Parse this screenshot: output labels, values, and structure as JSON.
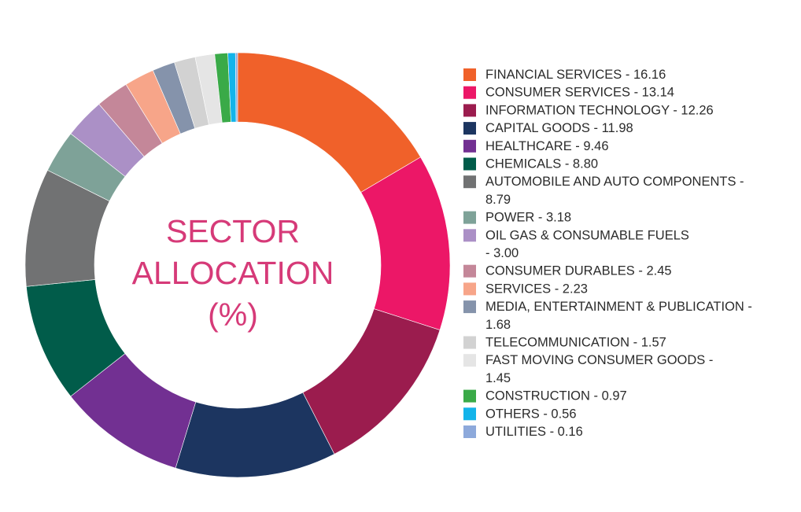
{
  "chart_data": {
    "type": "pie",
    "variant": "donut",
    "title_lines": [
      "SECTOR",
      "ALLOCATION",
      "(%)"
    ],
    "legend_position": "right",
    "slices": [
      {
        "label_lines": [
          "FINANCIAL SERVICES - 16.16"
        ],
        "value": 16.16,
        "color": "#f0612a"
      },
      {
        "label_lines": [
          "CONSUMER SERVICES - 13.14"
        ],
        "value": 13.14,
        "color": "#ec1767"
      },
      {
        "label_lines": [
          "INFORMATION TECHNOLOGY - 12.26"
        ],
        "value": 12.26,
        "color": "#9b1c4e"
      },
      {
        "label_lines": [
          "CAPITAL GOODS - 11.98"
        ],
        "value": 11.98,
        "color": "#1c3560"
      },
      {
        "label_lines": [
          "HEALTHCARE - 9.46"
        ],
        "value": 9.46,
        "color": "#723092"
      },
      {
        "label_lines": [
          "CHEMICALS - 8.80"
        ],
        "value": 8.8,
        "color": "#015c4a"
      },
      {
        "label_lines": [
          "AUTOMOBILE AND AUTO COMPONENTS -",
          "8.79"
        ],
        "value": 8.79,
        "color": "#717273"
      },
      {
        "label_lines": [
          "POWER - 3.18"
        ],
        "value": 3.18,
        "color": "#7ea298"
      },
      {
        "label_lines": [
          "OIL GAS & CONSUMABLE FUELS",
          " - 3.00"
        ],
        "value": 3.0,
        "color": "#ab90c6"
      },
      {
        "label_lines": [
          "CONSUMER DURABLES - 2.45"
        ],
        "value": 2.45,
        "color": "#c48799"
      },
      {
        "label_lines": [
          "SERVICES - 2.23"
        ],
        "value": 2.23,
        "color": "#f7a589"
      },
      {
        "label_lines": [
          "MEDIA, ENTERTAINMENT & PUBLICATION -",
          "1.68"
        ],
        "value": 1.68,
        "color": "#8593ab"
      },
      {
        "label_lines": [
          "TELECOMMUNICATION - 1.57"
        ],
        "value": 1.57,
        "color": "#d2d2d2"
      },
      {
        "label_lines": [
          "FAST MOVING CONSUMER GOODS -",
          "1.45"
        ],
        "value": 1.45,
        "color": "#e5e5e5"
      },
      {
        "label_lines": [
          "CONSTRUCTION - 0.97"
        ],
        "value": 0.97,
        "color": "#3aaa48"
      },
      {
        "label_lines": [
          "OTHERS - 0.56"
        ],
        "value": 0.56,
        "color": "#13b4ea"
      },
      {
        "label_lines": [
          "UTILITIES - 0.16"
        ],
        "value": 0.16,
        "color": "#8da9db"
      }
    ]
  }
}
